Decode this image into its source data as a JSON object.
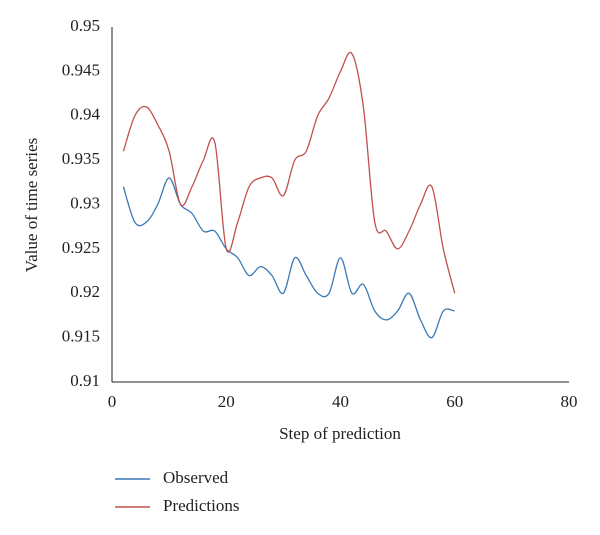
{
  "chart_data": {
    "type": "line",
    "x_label": "Step of prediction",
    "y_label": "Value of time series",
    "x": [
      2,
      4,
      6,
      8,
      10,
      12,
      14,
      16,
      18,
      20,
      22,
      24,
      26,
      28,
      30,
      32,
      34,
      36,
      38,
      40,
      42,
      44,
      46,
      48,
      50,
      52,
      54,
      56,
      58,
      60
    ],
    "series": [
      {
        "name": "Observed",
        "color": "#3b78b6",
        "values": [
          0.932,
          0.928,
          0.928,
          0.93,
          0.933,
          0.93,
          0.929,
          0.927,
          0.927,
          0.925,
          0.924,
          0.922,
          0.923,
          0.922,
          0.92,
          0.924,
          0.922,
          0.92,
          0.92,
          0.924,
          0.92,
          0.921,
          0.918,
          0.917,
          0.918,
          0.92,
          0.917,
          0.915,
          0.918,
          0.918
        ]
      },
      {
        "name": "Predictions",
        "color": "#c0504d",
        "values": [
          0.936,
          0.94,
          0.941,
          0.939,
          0.936,
          0.93,
          0.932,
          0.935,
          0.937,
          0.925,
          0.928,
          0.932,
          0.933,
          0.933,
          0.931,
          0.935,
          0.936,
          0.94,
          0.942,
          0.945,
          0.947,
          0.941,
          0.928,
          0.927,
          0.925,
          0.927,
          0.93,
          0.932,
          0.925,
          0.92
        ]
      }
    ],
    "xlim": [
      0,
      80
    ],
    "xticks": [
      0,
      20,
      40,
      60,
      80
    ],
    "ylim": [
      0.91,
      0.95
    ],
    "yticks": [
      0.95,
      0.945,
      0.94,
      0.935,
      0.93,
      0.925,
      0.92,
      0.915,
      0.91
    ],
    "grid": false,
    "legend": "bottom"
  }
}
